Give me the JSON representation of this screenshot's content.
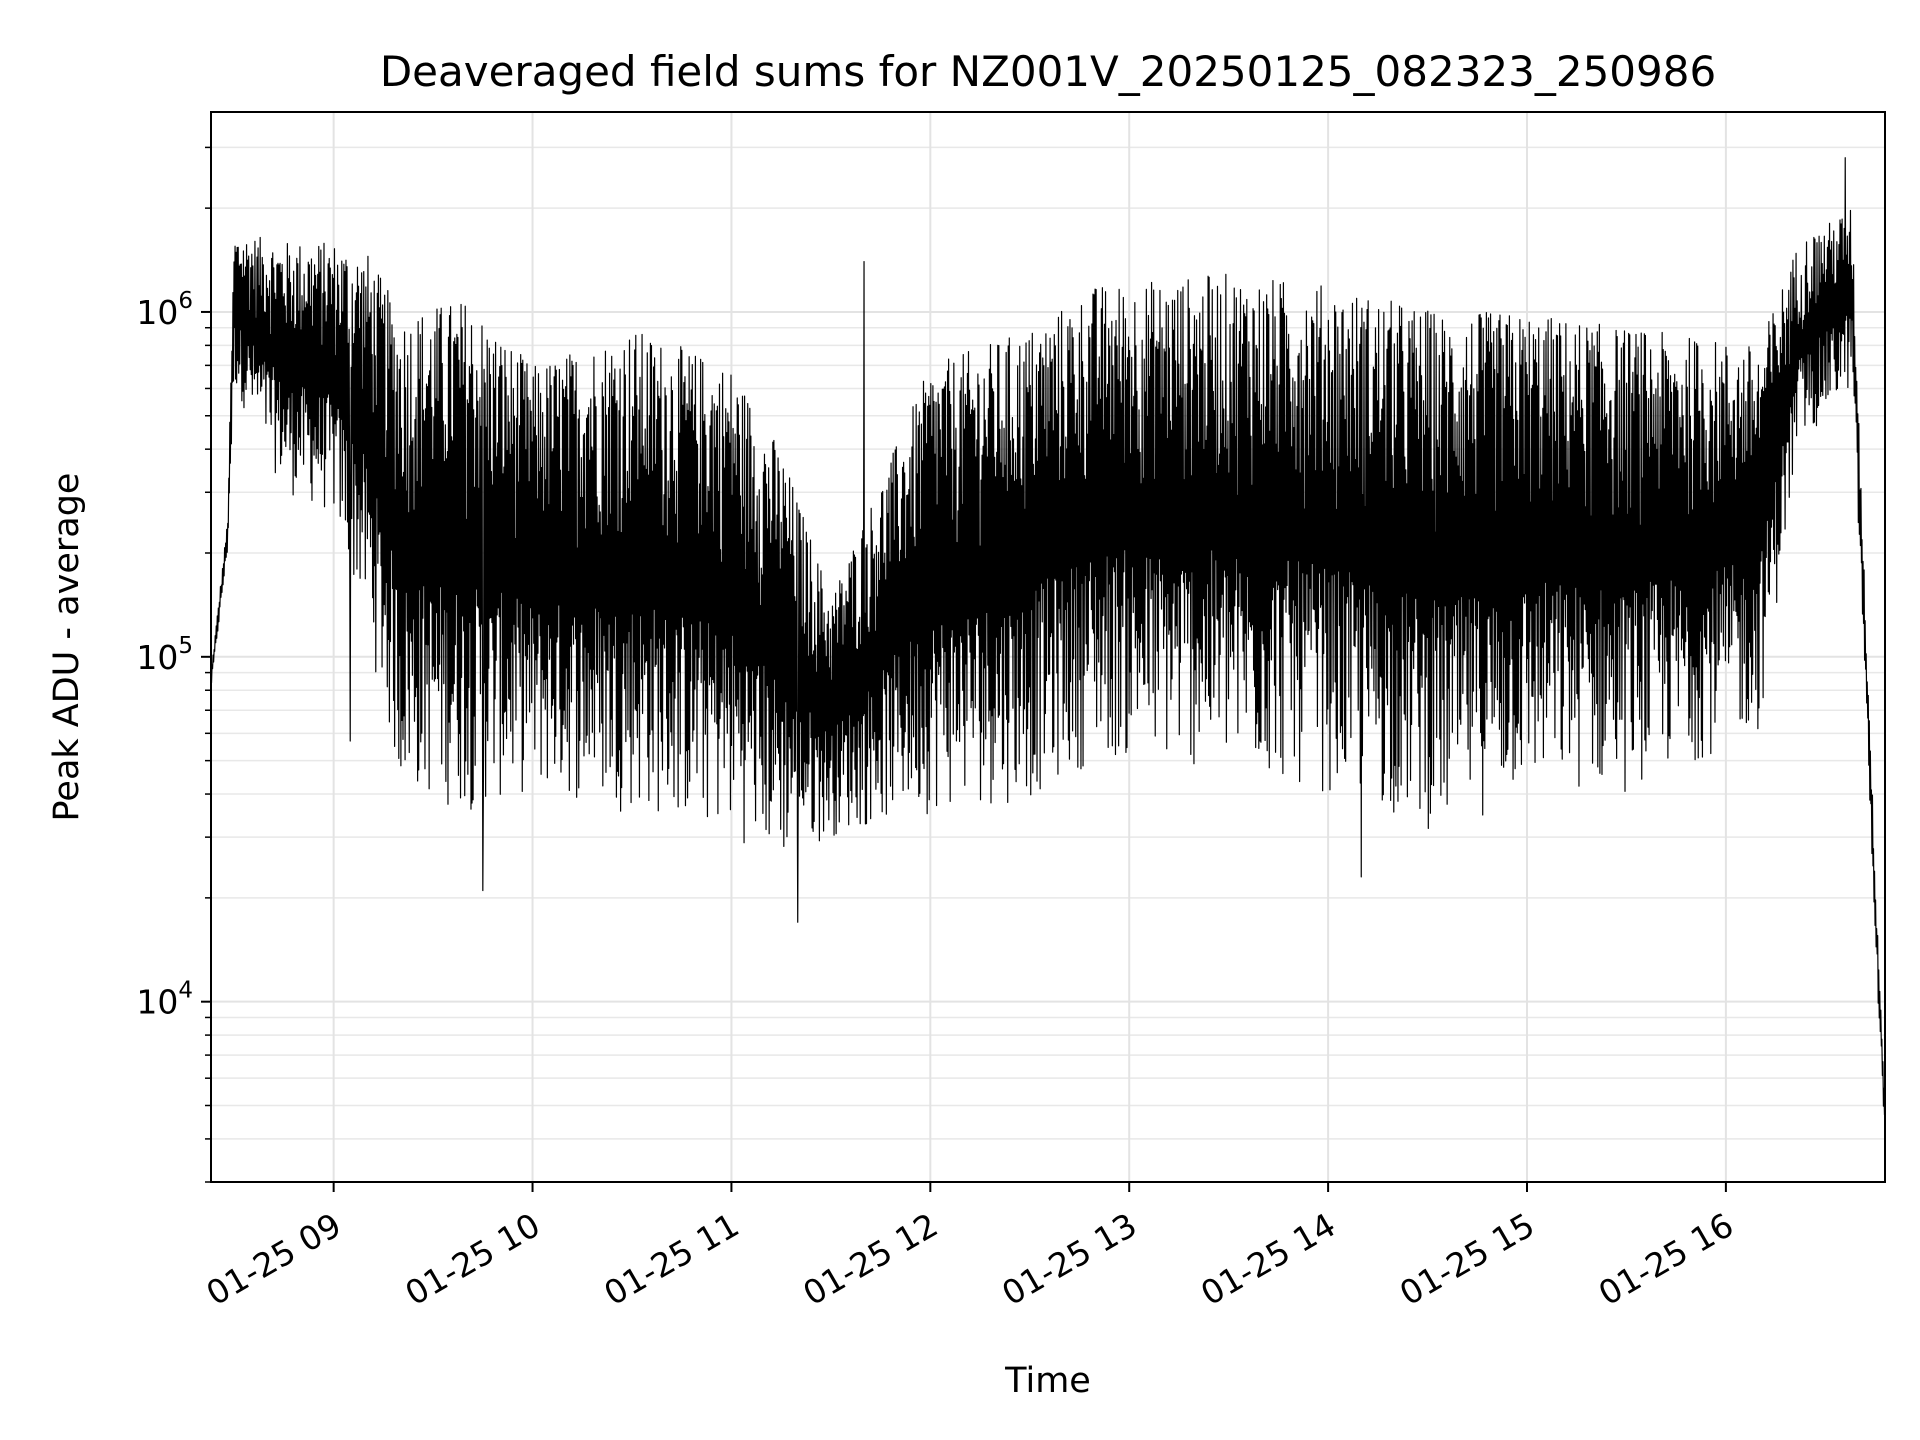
{
  "chart_data": {
    "type": "line",
    "title": "Deaveraged field sums for NZ001V_20250125_082323_250986",
    "xlabel": "Time",
    "ylabel": "Peak ADU - average",
    "yscale": "log",
    "grid": true,
    "xlim": [
      "2025-01-25T08:23",
      "2025-01-25T16:48"
    ],
    "ylim": [
      3000,
      3800000
    ],
    "xticks": [
      {
        "t": "2025-01-25T09:00",
        "label": "01-25 09"
      },
      {
        "t": "2025-01-25T10:00",
        "label": "01-25 10"
      },
      {
        "t": "2025-01-25T11:00",
        "label": "01-25 11"
      },
      {
        "t": "2025-01-25T12:00",
        "label": "01-25 12"
      },
      {
        "t": "2025-01-25T13:00",
        "label": "01-25 13"
      },
      {
        "t": "2025-01-25T14:00",
        "label": "01-25 14"
      },
      {
        "t": "2025-01-25T15:00",
        "label": "01-25 15"
      },
      {
        "t": "2025-01-25T16:00",
        "label": "01-25 16"
      }
    ],
    "yticks": [
      {
        "value": 10000,
        "base": "10",
        "exp": "4"
      },
      {
        "value": 100000,
        "base": "10",
        "exp": "5"
      },
      {
        "value": 1000000,
        "base": "10",
        "exp": "6"
      }
    ],
    "series": [
      {
        "color": "#000000",
        "envelope": [
          {
            "t": "2025-01-25T08:23",
            "low": 80000,
            "high": 90000
          },
          {
            "t": "2025-01-25T08:28",
            "low": 200000,
            "high": 250000
          },
          {
            "t": "2025-01-25T08:30",
            "low": 600000,
            "high": 1700000
          },
          {
            "t": "2025-01-25T08:45",
            "low": 300000,
            "high": 1600000
          },
          {
            "t": "2025-01-25T09:00",
            "low": 250000,
            "high": 1600000
          },
          {
            "t": "2025-01-25T09:10",
            "low": 120000,
            "high": 1500000
          },
          {
            "t": "2025-01-25T09:20",
            "low": 40000,
            "high": 1000000
          },
          {
            "t": "2025-01-25T09:40",
            "low": 35000,
            "high": 1100000
          },
          {
            "t": "2025-01-25T10:00",
            "low": 40000,
            "high": 700000
          },
          {
            "t": "2025-01-25T10:30",
            "low": 35000,
            "high": 900000
          },
          {
            "t": "2025-01-25T11:00",
            "low": 30000,
            "high": 700000
          },
          {
            "t": "2025-01-25T11:15",
            "low": 25000,
            "high": 400000
          },
          {
            "t": "2025-01-25T11:30",
            "low": 30000,
            "high": 150000
          },
          {
            "t": "2025-01-25T12:00",
            "low": 35000,
            "high": 700000
          },
          {
            "t": "2025-01-25T12:30",
            "low": 38000,
            "high": 900000
          },
          {
            "t": "2025-01-25T12:50",
            "low": 50000,
            "high": 1200000
          },
          {
            "t": "2025-01-25T13:30",
            "low": 45000,
            "high": 1300000
          },
          {
            "t": "2025-01-25T14:00",
            "low": 40000,
            "high": 1200000
          },
          {
            "t": "2025-01-25T14:35",
            "low": 30000,
            "high": 1000000
          },
          {
            "t": "2025-01-25T15:00",
            "low": 40000,
            "high": 1000000
          },
          {
            "t": "2025-01-25T15:30",
            "low": 40000,
            "high": 900000
          },
          {
            "t": "2025-01-25T16:10",
            "low": 60000,
            "high": 800000
          },
          {
            "t": "2025-01-25T16:22",
            "low": 400000,
            "high": 1600000
          },
          {
            "t": "2025-01-25T16:38",
            "low": 600000,
            "high": 2000000
          },
          {
            "t": "2025-01-25T16:42",
            "low": 80000,
            "high": 150000
          },
          {
            "t": "2025-01-25T16:45",
            "low": 15000,
            "high": 25000
          },
          {
            "t": "2025-01-25T16:48",
            "low": 4000,
            "high": 5000
          }
        ],
        "spikes": [
          {
            "t": "2025-01-25T09:05",
            "value": 57000
          },
          {
            "t": "2025-01-25T09:45",
            "value": 21000
          },
          {
            "t": "2025-01-25T11:20",
            "value": 17000
          },
          {
            "t": "2025-01-25T11:40",
            "value": 1400000
          },
          {
            "t": "2025-01-25T14:10",
            "value": 23000
          },
          {
            "t": "2025-01-25T16:36",
            "value": 2800000
          }
        ]
      }
    ]
  }
}
